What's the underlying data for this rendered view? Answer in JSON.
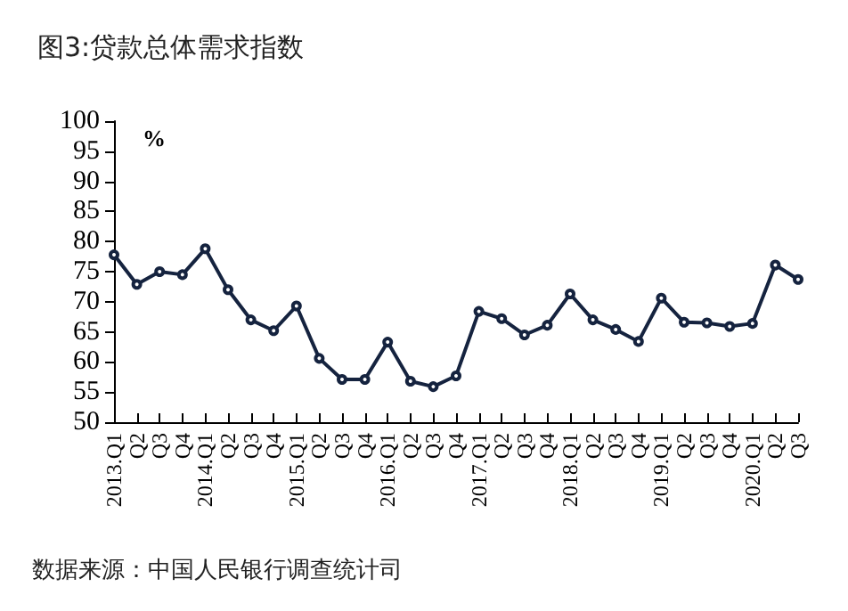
{
  "chart_data": {
    "type": "line",
    "title": "图3:贷款总体需求指数",
    "ylabel": "%",
    "annotations": [
      "数据来源：中国人民银行调查统计司"
    ],
    "categories": [
      "2013.Q1",
      "Q2",
      "Q3",
      "Q4",
      "2014.Q1",
      "Q2",
      "Q3",
      "Q4",
      "2015.Q1",
      "Q2",
      "Q3",
      "Q4",
      "2016.Q1",
      "Q2",
      "Q3",
      "Q4",
      "2017.Q1",
      "Q2",
      "Q3",
      "Q4",
      "2018.Q1",
      "Q2",
      "Q3",
      "Q4",
      "2019.Q1",
      "Q2",
      "Q3",
      "Q4",
      "2020.Q1",
      "Q2",
      "Q3"
    ],
    "series": [
      {
        "color": "#15233f",
        "values": [
          77.8,
          72.9,
          75.0,
          74.5,
          78.8,
          72.0,
          67.0,
          65.2,
          69.3,
          60.6,
          57.1,
          57.1,
          63.3,
          56.8,
          55.9,
          57.7,
          68.4,
          67.2,
          64.5,
          66.1,
          71.3,
          67.0,
          65.4,
          63.4,
          70.6,
          66.6,
          66.5,
          65.9,
          66.4,
          76.1,
          73.7
        ]
      }
    ],
    "ylim": [
      50,
      100
    ],
    "yticks": [
      50,
      55,
      60,
      65,
      70,
      75,
      80,
      85,
      90,
      95,
      100
    ],
    "grid": false,
    "marker": "circle",
    "line_style": "solid"
  }
}
